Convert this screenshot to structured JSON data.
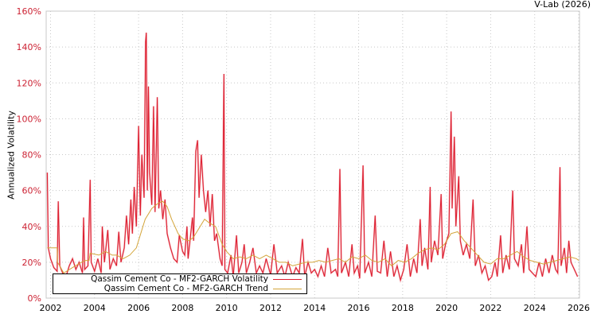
{
  "header": {
    "credit": "V-Lab (2026)"
  },
  "colors": {
    "volatility": "#dd1c2e",
    "volatility_light": "#ee8a93",
    "trend": "#d4a53a",
    "grid": "#c8c8c8",
    "axis_tick": "#cc2233"
  },
  "chart_data": {
    "type": "line",
    "title": "",
    "xlabel": "",
    "ylabel": "Annualized Volatility",
    "xlim": [
      2001.8,
      2026.0
    ],
    "ylim": [
      0,
      160
    ],
    "grid": true,
    "legend_position": "lower left",
    "x_ticks": [
      "2002",
      "2004",
      "2006",
      "2008",
      "2010",
      "2012",
      "2014",
      "2016",
      "2018",
      "2020",
      "2022",
      "2024",
      "2026"
    ],
    "y_ticks": [
      "0%",
      "20%",
      "40%",
      "60%",
      "80%",
      "100%",
      "120%",
      "140%",
      "160%"
    ],
    "series": [
      {
        "name": "Qassim Cement Co - MF2-GARCH Volatility",
        "color": "#dd1c2e",
        "points": [
          [
            2001.85,
            70
          ],
          [
            2001.9,
            28
          ],
          [
            2002.0,
            22
          ],
          [
            2002.15,
            17
          ],
          [
            2002.3,
            15
          ],
          [
            2002.35,
            54
          ],
          [
            2002.42,
            18
          ],
          [
            2002.55,
            14
          ],
          [
            2002.7,
            12
          ],
          [
            2002.85,
            18
          ],
          [
            2003.0,
            22
          ],
          [
            2003.15,
            16
          ],
          [
            2003.3,
            20
          ],
          [
            2003.45,
            14
          ],
          [
            2003.5,
            45
          ],
          [
            2003.55,
            16
          ],
          [
            2003.7,
            18
          ],
          [
            2003.8,
            66
          ],
          [
            2003.85,
            20
          ],
          [
            2004.0,
            15
          ],
          [
            2004.15,
            22
          ],
          [
            2004.3,
            14
          ],
          [
            2004.35,
            40
          ],
          [
            2004.45,
            20
          ],
          [
            2004.6,
            38
          ],
          [
            2004.7,
            16
          ],
          [
            2004.85,
            22
          ],
          [
            2005.0,
            18
          ],
          [
            2005.1,
            37
          ],
          [
            2005.2,
            20
          ],
          [
            2005.35,
            28
          ],
          [
            2005.45,
            46
          ],
          [
            2005.55,
            30
          ],
          [
            2005.65,
            55
          ],
          [
            2005.72,
            36
          ],
          [
            2005.8,
            62
          ],
          [
            2005.9,
            40
          ],
          [
            2006.0,
            96
          ],
          [
            2006.08,
            46
          ],
          [
            2006.15,
            80
          ],
          [
            2006.25,
            56
          ],
          [
            2006.32,
            143
          ],
          [
            2006.35,
            148
          ],
          [
            2006.4,
            60
          ],
          [
            2006.45,
            118
          ],
          [
            2006.5,
            70
          ],
          [
            2006.6,
            52
          ],
          [
            2006.68,
            107
          ],
          [
            2006.75,
            48
          ],
          [
            2006.85,
            112
          ],
          [
            2006.92,
            50
          ],
          [
            2007.0,
            60
          ],
          [
            2007.1,
            44
          ],
          [
            2007.2,
            55
          ],
          [
            2007.3,
            36
          ],
          [
            2007.45,
            28
          ],
          [
            2007.6,
            22
          ],
          [
            2007.75,
            20
          ],
          [
            2007.85,
            35
          ],
          [
            2008.0,
            26
          ],
          [
            2008.1,
            24
          ],
          [
            2008.2,
            40
          ],
          [
            2008.25,
            22
          ],
          [
            2008.45,
            45
          ],
          [
            2008.5,
            32
          ],
          [
            2008.6,
            82
          ],
          [
            2008.68,
            88
          ],
          [
            2008.75,
            56
          ],
          [
            2008.85,
            80
          ],
          [
            2008.95,
            60
          ],
          [
            2009.05,
            48
          ],
          [
            2009.15,
            60
          ],
          [
            2009.25,
            40
          ],
          [
            2009.35,
            58
          ],
          [
            2009.45,
            32
          ],
          [
            2009.55,
            36
          ],
          [
            2009.7,
            22
          ],
          [
            2009.8,
            18
          ],
          [
            2009.88,
            125
          ],
          [
            2009.92,
            16
          ],
          [
            2010.05,
            14
          ],
          [
            2010.2,
            24
          ],
          [
            2010.3,
            12
          ],
          [
            2010.45,
            35
          ],
          [
            2010.55,
            14
          ],
          [
            2010.7,
            20
          ],
          [
            2010.8,
            30
          ],
          [
            2010.9,
            14
          ],
          [
            2011.05,
            20
          ],
          [
            2011.2,
            28
          ],
          [
            2011.35,
            14
          ],
          [
            2011.5,
            18
          ],
          [
            2011.65,
            14
          ],
          [
            2011.8,
            22
          ],
          [
            2012.0,
            13
          ],
          [
            2012.15,
            30
          ],
          [
            2012.3,
            14
          ],
          [
            2012.5,
            18
          ],
          [
            2012.65,
            12
          ],
          [
            2012.8,
            20
          ],
          [
            2013.0,
            12
          ],
          [
            2013.15,
            17
          ],
          [
            2013.3,
            14
          ],
          [
            2013.45,
            33
          ],
          [
            2013.55,
            12
          ],
          [
            2013.7,
            20
          ],
          [
            2013.85,
            14
          ],
          [
            2014.0,
            16
          ],
          [
            2014.15,
            12
          ],
          [
            2014.3,
            18
          ],
          [
            2014.45,
            12
          ],
          [
            2014.6,
            28
          ],
          [
            2014.75,
            14
          ],
          [
            2014.95,
            16
          ],
          [
            2015.05,
            12
          ],
          [
            2015.15,
            72
          ],
          [
            2015.22,
            14
          ],
          [
            2015.4,
            20
          ],
          [
            2015.55,
            12
          ],
          [
            2015.7,
            30
          ],
          [
            2015.8,
            14
          ],
          [
            2015.95,
            18
          ],
          [
            2016.05,
            11
          ],
          [
            2016.2,
            74
          ],
          [
            2016.28,
            14
          ],
          [
            2016.45,
            20
          ],
          [
            2016.6,
            12
          ],
          [
            2016.75,
            46
          ],
          [
            2016.85,
            15
          ],
          [
            2017.0,
            14
          ],
          [
            2017.15,
            32
          ],
          [
            2017.3,
            12
          ],
          [
            2017.45,
            26
          ],
          [
            2017.6,
            12
          ],
          [
            2017.75,
            18
          ],
          [
            2017.9,
            10
          ],
          [
            2018.05,
            16
          ],
          [
            2018.2,
            30
          ],
          [
            2018.35,
            12
          ],
          [
            2018.5,
            22
          ],
          [
            2018.65,
            14
          ],
          [
            2018.8,
            44
          ],
          [
            2018.88,
            18
          ],
          [
            2019.0,
            28
          ],
          [
            2019.15,
            16
          ],
          [
            2019.25,
            62
          ],
          [
            2019.3,
            20
          ],
          [
            2019.45,
            32
          ],
          [
            2019.6,
            24
          ],
          [
            2019.75,
            58
          ],
          [
            2019.82,
            22
          ],
          [
            2019.95,
            30
          ],
          [
            2020.1,
            36
          ],
          [
            2020.2,
            104
          ],
          [
            2020.25,
            50
          ],
          [
            2020.35,
            90
          ],
          [
            2020.42,
            40
          ],
          [
            2020.55,
            68
          ],
          [
            2020.62,
            32
          ],
          [
            2020.75,
            24
          ],
          [
            2020.9,
            30
          ],
          [
            2021.05,
            22
          ],
          [
            2021.2,
            55
          ],
          [
            2021.3,
            18
          ],
          [
            2021.45,
            24
          ],
          [
            2021.6,
            14
          ],
          [
            2021.75,
            18
          ],
          [
            2021.9,
            10
          ],
          [
            2022.05,
            12
          ],
          [
            2022.2,
            20
          ],
          [
            2022.3,
            12
          ],
          [
            2022.45,
            35
          ],
          [
            2022.55,
            14
          ],
          [
            2022.7,
            24
          ],
          [
            2022.85,
            16
          ],
          [
            2023.0,
            60
          ],
          [
            2023.08,
            22
          ],
          [
            2023.25,
            18
          ],
          [
            2023.4,
            30
          ],
          [
            2023.5,
            14
          ],
          [
            2023.65,
            40
          ],
          [
            2023.75,
            16
          ],
          [
            2023.9,
            14
          ],
          [
            2024.05,
            12
          ],
          [
            2024.2,
            20
          ],
          [
            2024.35,
            12
          ],
          [
            2024.5,
            22
          ],
          [
            2024.65,
            14
          ],
          [
            2024.8,
            24
          ],
          [
            2024.95,
            16
          ],
          [
            2025.05,
            14
          ],
          [
            2025.15,
            73
          ],
          [
            2025.2,
            18
          ],
          [
            2025.35,
            28
          ],
          [
            2025.45,
            14
          ],
          [
            2025.55,
            32
          ],
          [
            2025.65,
            20
          ],
          [
            2025.8,
            16
          ],
          [
            2025.95,
            12
          ]
        ]
      },
      {
        "name": "Qassim Cement Co - MF2-GARCH Trend",
        "color": "#d4a53a",
        "points": [
          [
            2001.85,
            28
          ],
          [
            2002.3,
            28
          ],
          [
            2002.32,
            20
          ],
          [
            2002.6,
            14
          ],
          [
            2003.0,
            17
          ],
          [
            2003.4,
            20
          ],
          [
            2003.6,
            21
          ],
          [
            2003.75,
            21
          ],
          [
            2003.8,
            25
          ],
          [
            2004.2,
            24
          ],
          [
            2004.5,
            26
          ],
          [
            2004.8,
            24
          ],
          [
            2005.0,
            24
          ],
          [
            2005.3,
            22
          ],
          [
            2005.6,
            24
          ],
          [
            2005.9,
            28
          ],
          [
            2006.1,
            36
          ],
          [
            2006.3,
            44
          ],
          [
            2006.6,
            50
          ],
          [
            2006.9,
            53
          ],
          [
            2007.1,
            54
          ],
          [
            2007.3,
            51
          ],
          [
            2007.5,
            44
          ],
          [
            2007.8,
            36
          ],
          [
            2008.0,
            33
          ],
          [
            2008.3,
            32
          ],
          [
            2008.5,
            34
          ],
          [
            2008.8,
            40
          ],
          [
            2009.0,
            44
          ],
          [
            2009.2,
            42
          ],
          [
            2009.5,
            40
          ],
          [
            2009.8,
            30
          ],
          [
            2010.0,
            26
          ],
          [
            2010.3,
            22
          ],
          [
            2010.6,
            23
          ],
          [
            2010.9,
            22
          ],
          [
            2011.2,
            24
          ],
          [
            2011.5,
            22
          ],
          [
            2011.8,
            24
          ],
          [
            2012.1,
            22
          ],
          [
            2012.4,
            20
          ],
          [
            2012.7,
            20
          ],
          [
            2013.0,
            18
          ],
          [
            2013.3,
            19
          ],
          [
            2013.6,
            20
          ],
          [
            2013.9,
            20
          ],
          [
            2014.2,
            21
          ],
          [
            2014.5,
            20
          ],
          [
            2014.8,
            21
          ],
          [
            2015.1,
            22
          ],
          [
            2015.4,
            20
          ],
          [
            2015.7,
            23
          ],
          [
            2016.0,
            22
          ],
          [
            2016.3,
            24
          ],
          [
            2016.6,
            21
          ],
          [
            2016.9,
            20
          ],
          [
            2017.2,
            22
          ],
          [
            2017.5,
            18
          ],
          [
            2017.8,
            21
          ],
          [
            2018.1,
            20
          ],
          [
            2018.4,
            22
          ],
          [
            2018.7,
            25
          ],
          [
            2019.0,
            27
          ],
          [
            2019.3,
            28
          ],
          [
            2019.6,
            27
          ],
          [
            2019.9,
            30
          ],
          [
            2020.2,
            36
          ],
          [
            2020.5,
            37
          ],
          [
            2020.8,
            32
          ],
          [
            2021.1,
            28
          ],
          [
            2021.4,
            24
          ],
          [
            2021.7,
            20
          ],
          [
            2022.0,
            19
          ],
          [
            2022.3,
            22
          ],
          [
            2022.6,
            22
          ],
          [
            2022.9,
            24
          ],
          [
            2023.2,
            26
          ],
          [
            2023.5,
            23
          ],
          [
            2023.8,
            21
          ],
          [
            2024.1,
            20
          ],
          [
            2024.4,
            19
          ],
          [
            2024.7,
            20
          ],
          [
            2025.0,
            21
          ],
          [
            2025.3,
            22
          ],
          [
            2025.6,
            23
          ],
          [
            2025.9,
            22
          ],
          [
            2026.0,
            21
          ]
        ]
      }
    ],
    "annotations": [
      "V-Lab (2026)"
    ]
  },
  "legend": {
    "items": [
      {
        "label": "Qassim Cement Co - MF2-GARCH Volatility"
      },
      {
        "label": "Qassim Cement Co - MF2-GARCH Trend"
      }
    ]
  }
}
